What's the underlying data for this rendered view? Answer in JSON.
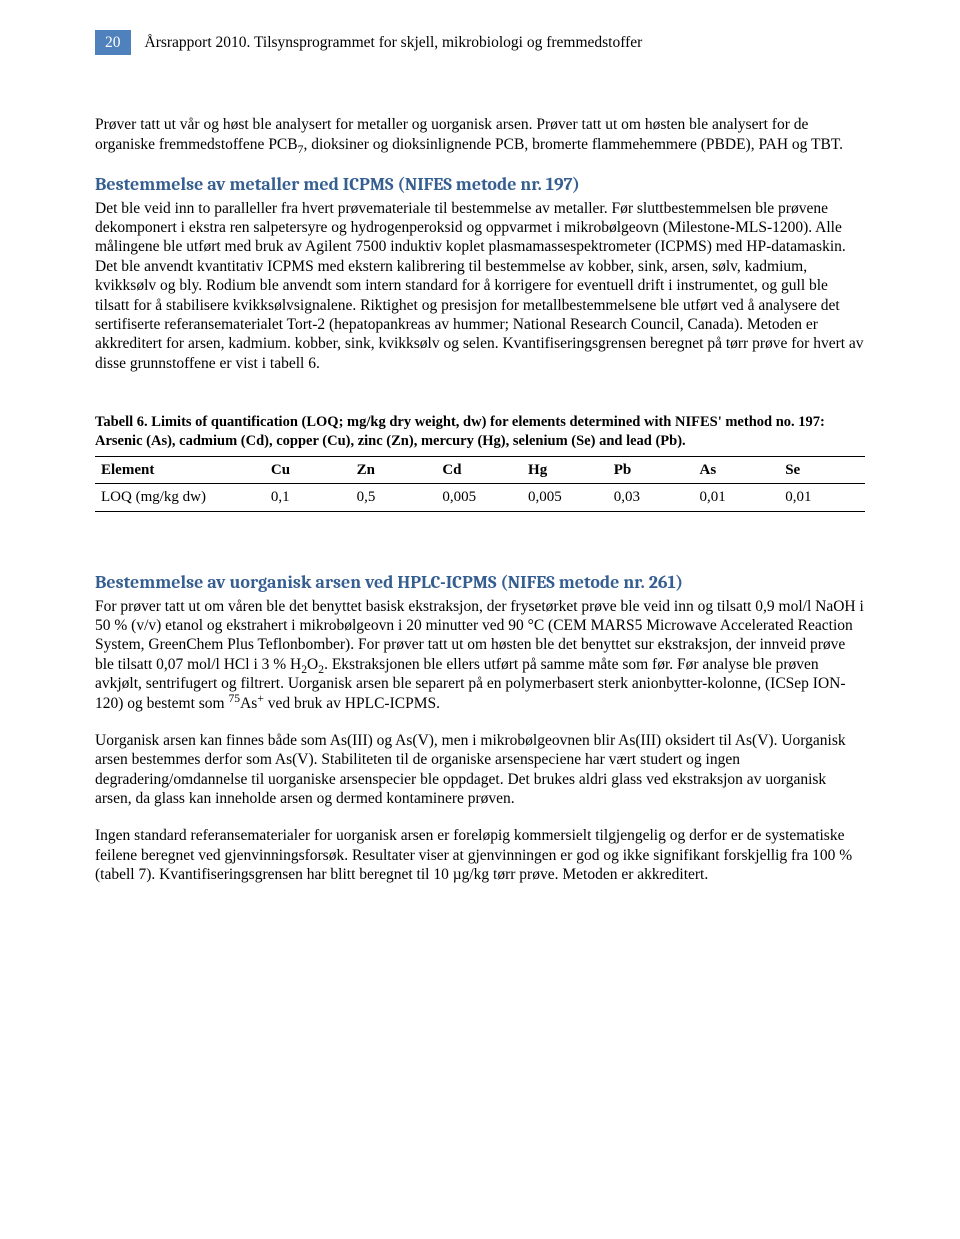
{
  "header": {
    "page_number": "20",
    "title": "Årsrapport 2010. Tilsynsprogrammet for skjell, mikrobiologi og fremmedstoffer"
  },
  "intro_paragraph_html": "Prøver tatt ut vår og høst ble analysert for metaller og uorganisk arsen. Prøver tatt ut om høsten ble analysert for de organiske fremmedstoffene PCB<sub>7</sub>, dioksiner og dioksinlignende PCB, bromerte flammehemmere (PBDE), PAH og TBT.",
  "section1": {
    "heading": "Bestemmelse av metaller med ICPMS (NIFES metode nr. 197)",
    "body": "Det ble veid inn to paralleller fra hvert prøvemateriale til bestemmelse av metaller. Før sluttbestemmelsen ble prøvene dekomponert i ekstra ren salpetersyre og hydrogenperoksid og oppvarmet i mikrobølgeovn (Milestone-MLS-1200). Alle målingene ble utført med bruk av Agilent 7500 induktiv koplet plasmamassespektrometer (ICPMS) med HP-datamaskin. Det ble anvendt kvantitativ ICPMS med ekstern kalibrering til bestemmelse av kobber, sink, arsen, sølv, kadmium, kvikksølv og bly. Rodium ble anvendt som intern standard for å korrigere for eventuell drift i instrumentet, og gull ble tilsatt for å stabilisere kvikksølvsignalene. Riktighet og presisjon for metallbestemmelsene ble utført ved å analysere det sertifiserte referansematerialet Tort-2 (hepatopankreas av hummer; National Research Council, Canada). Metoden er akkreditert for arsen, kadmium. kobber, sink, kvikksølv og selen. Kvantifiseringsgrensen beregnet på tørr prøve for hvert av disse grunnstoffene er vist i tabell 6."
  },
  "table6": {
    "caption": "Tabell 6. Limits of quantification (LOQ; mg/kg dry weight, dw) for elements determined with NIFES' method no. 197: Arsenic (As), cadmium (Cd), copper (Cu), zinc (Zn), mercury (Hg), selenium (Se) and lead (Pb).",
    "columns": [
      "Element",
      "Cu",
      "Zn",
      "Cd",
      "Hg",
      "Pb",
      "As",
      "Se"
    ],
    "row_label": "LOQ (mg/kg dw)",
    "values": [
      "0,1",
      "0,5",
      "0,005",
      "0,005",
      "0,03",
      "0,01",
      "0,01"
    ]
  },
  "section2": {
    "heading": "Bestemmelse av uorganisk arsen ved HPLC-ICPMS (NIFES metode nr. 261)",
    "p1_html": "For prøver tatt ut om våren ble det benyttet basisk ekstraksjon, der frysetørket prøve ble veid inn og tilsatt 0,9 mol/l NaOH i 50 % (v/v) etanol og ekstrahert i mikrobølgeovn i 20 minutter ved 90 °C (CEM MARS5 Microwave Accelerated Reaction System, GreenChem Plus Teflonbomber). For prøver tatt ut om høsten ble det benyttet sur ekstraksjon, der innveid prøve ble tilsatt 0,07 mol/l HCl i 3 % H<sub>2</sub>O<sub>2</sub>. Ekstraksjonen ble ellers utført på samme måte som før. Før analyse ble prøven avkjølt, sentrifugert og filtrert. Uorganisk arsen ble separert på en polymerbasert sterk anionbytter-kolonne, (ICSep ION-120) og bestemt som <sup>75</sup>As<sup>+</sup> ved bruk av HPLC-ICPMS.",
    "p2": "Uorganisk arsen kan finnes både som As(III) og As(V), men i mikrobølgeovnen blir As(III) oksidert til As(V). Uorganisk arsen bestemmes derfor som As(V). Stabiliteten til de organiske arsenspeciene har vært studert og ingen degradering/omdannelse til uorganiske arsenspecier ble oppdaget. Det brukes aldri glass ved ekstraksjon av uorganisk arsen, da glass kan inneholde arsen og dermed kontaminere prøven.",
    "p3": "Ingen standard referansematerialer for uorganisk arsen er foreløpig kommersielt tilgjengelig og derfor er de systematiske feilene beregnet ved gjenvinningsforsøk. Resultater viser at gjenvinningen er god og ikke signifikant forskjellig fra 100 % (tabell 7). Kvantifiseringsgrensen har blitt beregnet til 10 µg/kg tørr prøve. Metoden er akkreditert."
  }
}
